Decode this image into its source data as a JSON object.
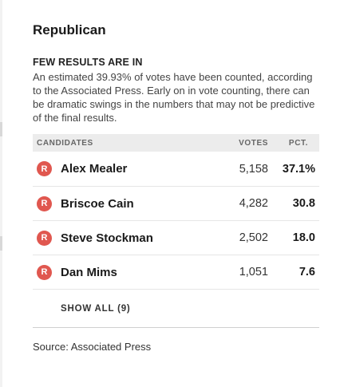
{
  "race": {
    "title": "Republican"
  },
  "notice": {
    "heading": "FEW RESULTS ARE IN",
    "body": "An estimated 39.93% of votes have been counted, according to the Associated Press. Early on in vote counting, there can be dramatic swings in the numbers that may not be predictive of the final results."
  },
  "table": {
    "headers": {
      "candidates": "CANDIDATES",
      "votes": "VOTES",
      "pct": "PCT."
    },
    "rows": [
      {
        "party": "R",
        "name": "Alex Mealer",
        "votes": "5,158",
        "pct": "37.1%"
      },
      {
        "party": "R",
        "name": "Briscoe Cain",
        "votes": "4,282",
        "pct": "30.8"
      },
      {
        "party": "R",
        "name": "Steve Stockman",
        "votes": "2,502",
        "pct": "18.0"
      },
      {
        "party": "R",
        "name": "Dan Mims",
        "votes": "1,051",
        "pct": "7.6"
      }
    ],
    "show_all": "SHOW ALL (9)"
  },
  "source": "Source: Associated Press",
  "colors": {
    "republican": "#e0574f",
    "header_bg": "#ececec"
  }
}
